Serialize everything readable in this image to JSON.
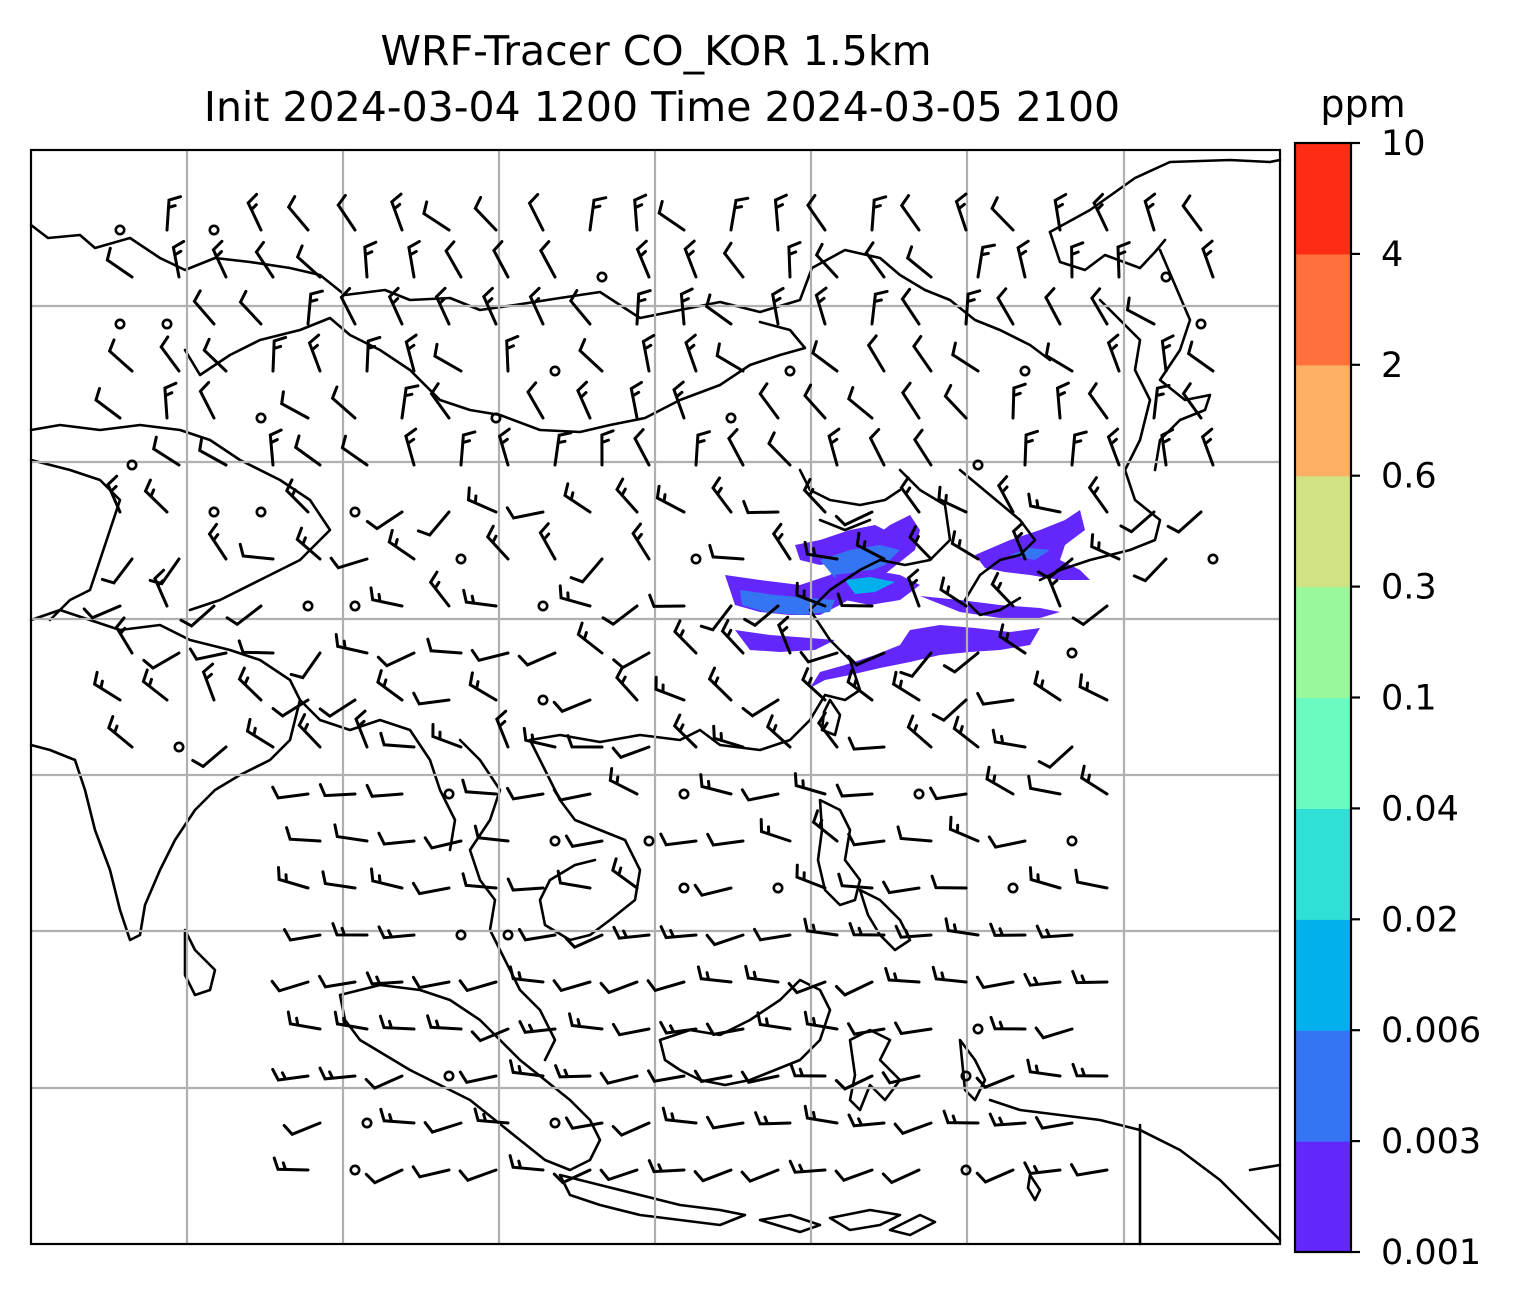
{
  "chart_data": {
    "type": "heatmap",
    "title": "WRF-Tracer CO_KOR 1.5km",
    "subtitle": "Init 2024-03-04 1200 Time 2024-03-05 2100",
    "xlabel": "",
    "ylabel": "",
    "grid": true,
    "legend": "none",
    "colorbar": {
      "label": "ppm",
      "placement": "right",
      "levels": [
        "0.001",
        "0.003",
        "0.006",
        "0.02",
        "0.04",
        "0.1",
        "0.3",
        "0.6",
        "2",
        "4",
        "10"
      ],
      "colors": [
        "#6427fb",
        "#3574f2",
        "#02b1ec",
        "#2ee0d6",
        "#6bfbc0",
        "#9af89c",
        "#cfe385",
        "#fdb064",
        "#ff713c",
        "#fe2b15"
      ]
    },
    "overlay": "wind barbs and coastlines"
  }
}
